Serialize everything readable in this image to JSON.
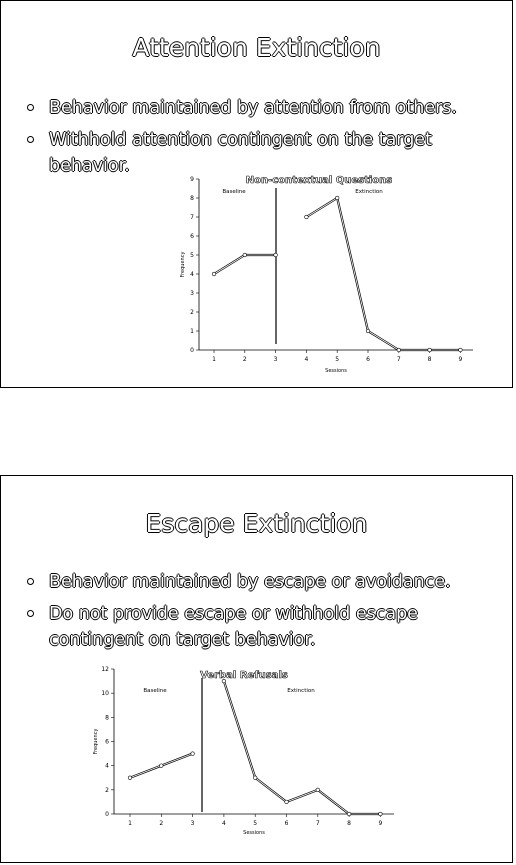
{
  "slides": [
    {
      "title": "Attention Extinction",
      "bullets": [
        "Behavior maintained by attention from others.",
        "Withhold attention contingent on the target behavior."
      ]
    },
    {
      "title": "Escape Extinction",
      "bullets": [
        "Behavior maintained by escape or avoidance.",
        "Do not provide escape or withhold escape contingent on target behavior."
      ]
    }
  ],
  "chart_data": [
    {
      "type": "line",
      "title": "Non-contextual Questions",
      "xlabel": "Sessions",
      "ylabel": "Frequency",
      "x": [
        1,
        2,
        3,
        4,
        5,
        6,
        7,
        8,
        9
      ],
      "yticks": [
        0,
        1,
        2,
        3,
        4,
        5,
        6,
        7,
        8,
        9
      ],
      "ylim": [
        0,
        9
      ],
      "phases": [
        "Baseline",
        "Extinction"
      ],
      "phase_change_after": 3,
      "series": [
        {
          "x": [
            1,
            2,
            3
          ],
          "y": [
            4,
            5,
            5
          ]
        },
        {
          "x": [
            4,
            5,
            6,
            7,
            8,
            9
          ],
          "y": [
            7,
            8,
            1,
            0,
            0,
            0
          ]
        }
      ]
    },
    {
      "type": "line",
      "title": "Verbal Refusals",
      "xlabel": "Sessions",
      "ylabel": "Frequency",
      "x": [
        1,
        2,
        3,
        4,
        5,
        6,
        7,
        8,
        9
      ],
      "yticks": [
        0,
        2,
        4,
        6,
        8,
        10,
        12
      ],
      "ylim": [
        0,
        12
      ],
      "phases": [
        "Baseline",
        "Extinction"
      ],
      "phase_change_after": 3,
      "series": [
        {
          "x": [
            1,
            2,
            3
          ],
          "y": [
            3,
            4,
            5
          ]
        },
        {
          "x": [
            4,
            5,
            6,
            7,
            8,
            9
          ],
          "y": [
            11,
            3,
            1,
            2,
            0,
            0
          ]
        }
      ]
    }
  ]
}
